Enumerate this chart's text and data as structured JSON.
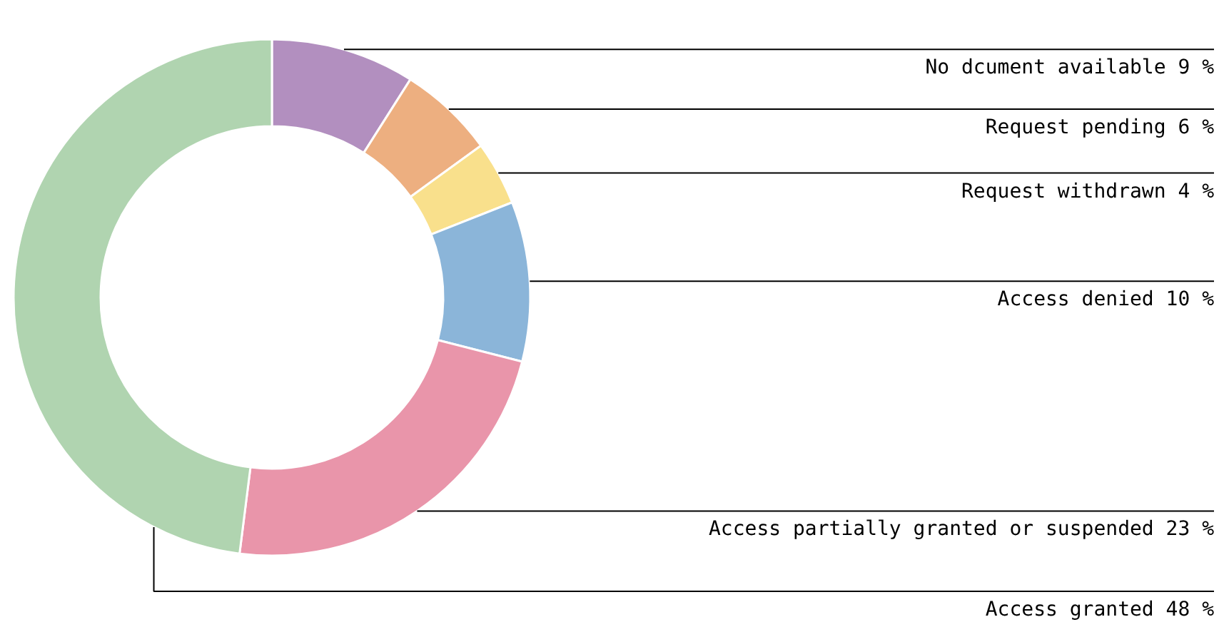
{
  "chart_data": {
    "type": "donut",
    "categories": [
      "No dcument available",
      "Request pending",
      "Request withdrawn",
      "Access denied",
      "Access partially granted or suspended",
      "Access granted"
    ],
    "values": [
      9,
      6,
      4,
      10,
      23,
      48
    ],
    "value_labels": [
      "9 %",
      "6 %",
      "4 %",
      "10 %",
      "23 %",
      "48 %"
    ],
    "colors": [
      "#b28fbf",
      "#edaf80",
      "#f9e08c",
      "#8bb5d9",
      "#e995aa",
      "#b0d4b0"
    ]
  }
}
